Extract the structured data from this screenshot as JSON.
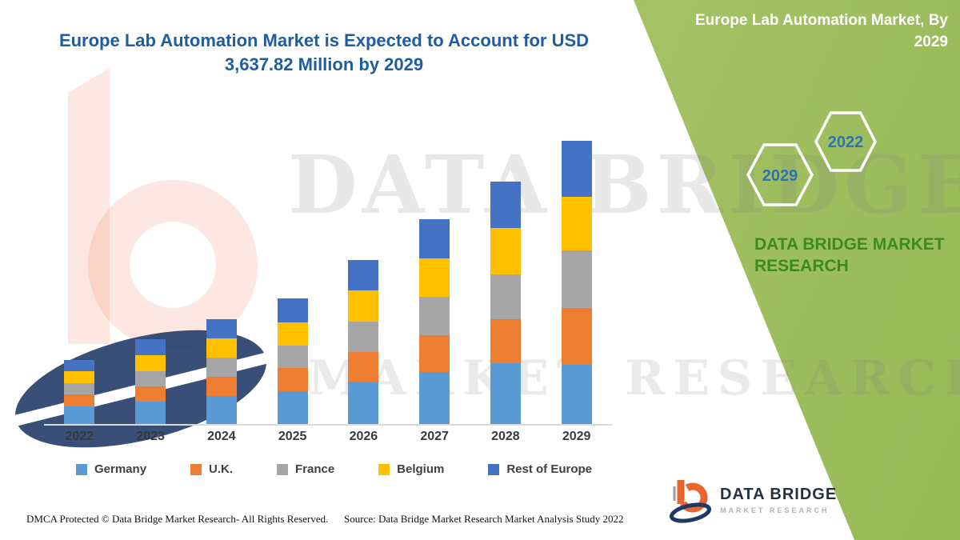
{
  "title": {
    "line1": "Europe Lab Automation Market is Expected to Account for USD",
    "line2": "3,637.82 Million by 2029"
  },
  "band": {
    "title_line1": "Europe Lab Automation Market, By",
    "title_line2": "2029",
    "hexagons": [
      "2029",
      "2022"
    ],
    "brand_line1": "DATA BRIDGE MARKET",
    "brand_line2": "RESEARCH",
    "color": "#9CBE5C",
    "hex_text_color": "#2E74B5",
    "brand_text_color": "#3E8A22"
  },
  "watermark": {
    "line1": "DATA BRIDGE",
    "line2": "MARKET RESEARCH"
  },
  "footer": {
    "dmca": "DMCA Protected © Data Bridge Market Research- All Rights Reserved.",
    "source": "Source: Data Bridge Market Research Market Analysis Study 2022"
  },
  "logo": {
    "name": "DATA BRIDGE",
    "subtitle": "MARKET RESEARCH"
  },
  "colors": {
    "title_blue": "#1F5CA0",
    "axis_label": "#3A3A3A"
  },
  "chart_data": {
    "type": "bar",
    "stacked": true,
    "title": "Europe Lab Automation Market is Expected to Account for USD 3,637.82 Million by 2029",
    "categories": [
      "2022",
      "2023",
      "2024",
      "2025",
      "2026",
      "2027",
      "2028",
      "2029"
    ],
    "series": [
      {
        "name": "Germany",
        "color": "#5B9BD5",
        "values": [
          230,
          290,
          360,
          425,
          545,
          665,
          780,
          765
        ]
      },
      {
        "name": "U.K.",
        "color": "#ED7D31",
        "values": [
          150,
          195,
          245,
          290,
          385,
          480,
          565,
          725
        ]
      },
      {
        "name": "France",
        "color": "#A5A5A5",
        "values": [
          145,
          195,
          245,
          295,
          390,
          490,
          580,
          740
        ]
      },
      {
        "name": "Belgium",
        "color": "#FFC000",
        "values": [
          150,
          200,
          250,
          300,
          395,
          495,
          590,
          690
        ]
      },
      {
        "name": "Rest of Europe",
        "color": "#4472C4",
        "values": [
          148,
          205,
          250,
          300,
          395,
          500,
          595,
          717.82
        ]
      }
    ],
    "totals_estimated": [
      823,
      1085,
      1350,
      1610,
      2110,
      2630,
      3110,
      3637.82
    ],
    "total_2029_labeled": 3637.82,
    "units": "USD Million",
    "ylim": [
      0,
      3700
    ],
    "grid": false,
    "y_axis_ticks_visible": false,
    "legend_position": "bottom"
  }
}
